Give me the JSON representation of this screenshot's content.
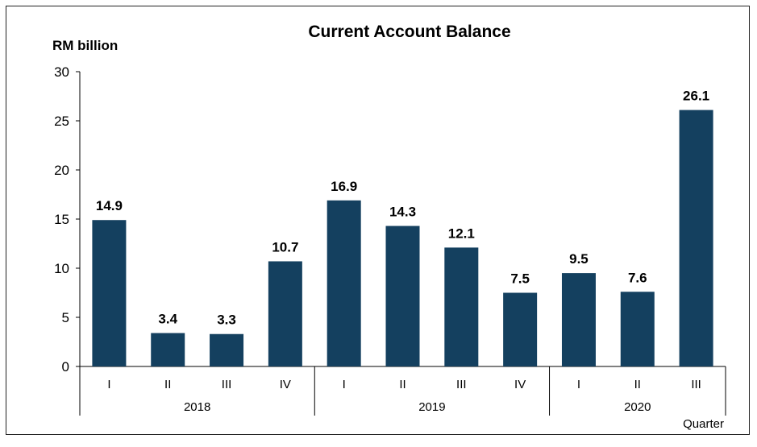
{
  "chart_data": {
    "type": "bar",
    "title": "Current Account Balance",
    "ylabel": "RM billion",
    "xlabel": "Quarter",
    "ylim": [
      0,
      30
    ],
    "yticks": [
      0,
      5,
      10,
      15,
      20,
      25,
      30
    ],
    "grid": false,
    "legend": "none",
    "bar_color": "#14405f",
    "categories": [
      "I",
      "II",
      "III",
      "IV",
      "I",
      "II",
      "III",
      "IV",
      "I",
      "II",
      "III"
    ],
    "groups": [
      {
        "label": "2018",
        "count": 4
      },
      {
        "label": "2019",
        "count": 4
      },
      {
        "label": "2020",
        "count": 3
      }
    ],
    "values": [
      14.9,
      3.4,
      3.3,
      10.7,
      16.9,
      14.3,
      12.1,
      7.5,
      9.5,
      7.6,
      26.1
    ],
    "data_labels": [
      "14.9",
      "3.4",
      "3.3",
      "10.7",
      "16.9",
      "14.3",
      "12.1",
      "7.5",
      "9.5",
      "7.6",
      "26.1"
    ]
  }
}
